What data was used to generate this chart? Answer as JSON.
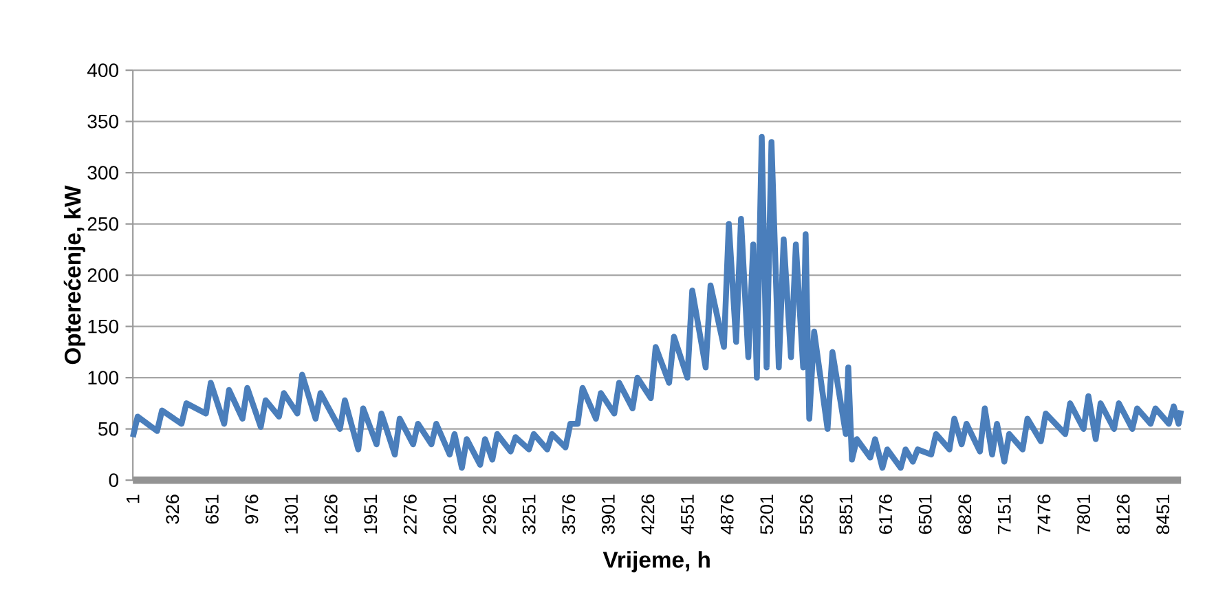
{
  "chart_data": {
    "type": "line",
    "xlabel": "Vrijeme, h",
    "ylabel": "Opterećenje, kW",
    "x": [
      1,
      40,
      200,
      240,
      400,
      440,
      600,
      640,
      750,
      790,
      900,
      940,
      1050,
      1090,
      1200,
      1240,
      1350,
      1390,
      1500,
      1540,
      1700,
      1740,
      1850,
      1890,
      2000,
      2040,
      2150,
      2190,
      2300,
      2340,
      2450,
      2490,
      2600,
      2640,
      2700,
      2740,
      2850,
      2890,
      2950,
      2990,
      3100,
      3140,
      3250,
      3290,
      3400,
      3440,
      3550,
      3590,
      3650,
      3690,
      3800,
      3840,
      3950,
      3990,
      4100,
      4140,
      4250,
      4290,
      4400,
      4440,
      4550,
      4590,
      4700,
      4740,
      4850,
      4890,
      4950,
      4990,
      5050,
      5090,
      5120,
      5160,
      5200,
      5240,
      5300,
      5340,
      5400,
      5440,
      5500,
      5520,
      5550,
      5590,
      5700,
      5740,
      5850,
      5870,
      5900,
      5940,
      6050,
      6090,
      6150,
      6190,
      6300,
      6340,
      6400,
      6440,
      6550,
      6590,
      6700,
      6740,
      6800,
      6840,
      6950,
      6990,
      7050,
      7090,
      7150,
      7190,
      7300,
      7340,
      7450,
      7490,
      7650,
      7690,
      7800,
      7840,
      7900,
      7940,
      8050,
      8090,
      8200,
      8240,
      8350,
      8390,
      8500,
      8540,
      8580,
      8600
    ],
    "series": [
      {
        "color": "#4a7ebb",
        "line_style": "solid",
        "values": [
          42,
          62,
          48,
          68,
          55,
          75,
          65,
          95,
          55,
          88,
          60,
          90,
          52,
          78,
          62,
          85,
          65,
          103,
          60,
          85,
          50,
          78,
          30,
          70,
          35,
          65,
          25,
          60,
          35,
          55,
          35,
          55,
          25,
          45,
          12,
          40,
          15,
          40,
          20,
          45,
          28,
          42,
          30,
          45,
          30,
          45,
          32,
          55,
          55,
          90,
          60,
          85,
          65,
          95,
          70,
          100,
          80,
          130,
          95,
          140,
          100,
          185,
          110,
          190,
          130,
          250,
          135,
          255,
          120,
          230,
          100,
          335,
          110,
          330,
          110,
          235,
          120,
          230,
          110,
          240,
          60,
          145,
          50,
          125,
          45,
          110,
          20,
          40,
          22,
          40,
          12,
          30,
          12,
          30,
          18,
          30,
          25,
          45,
          30,
          60,
          35,
          55,
          28,
          70,
          25,
          55,
          18,
          45,
          30,
          60,
          38,
          65,
          45,
          75,
          50,
          82,
          40,
          75,
          50,
          75,
          50,
          70,
          55,
          70,
          55,
          72,
          55,
          68
        ]
      }
    ],
    "xlim": [
      1,
      8600
    ],
    "ylim": [
      0,
      400
    ],
    "xticks": [
      1,
      326,
      651,
      976,
      1301,
      1626,
      1951,
      2276,
      2601,
      2926,
      3251,
      3576,
      3901,
      4226,
      4551,
      4876,
      5201,
      5526,
      5851,
      6176,
      6501,
      6826,
      7151,
      7476,
      7801,
      8126,
      8451
    ],
    "yticks": [
      0,
      50,
      100,
      150,
      200,
      250,
      300,
      350,
      400
    ],
    "grid": "y"
  }
}
